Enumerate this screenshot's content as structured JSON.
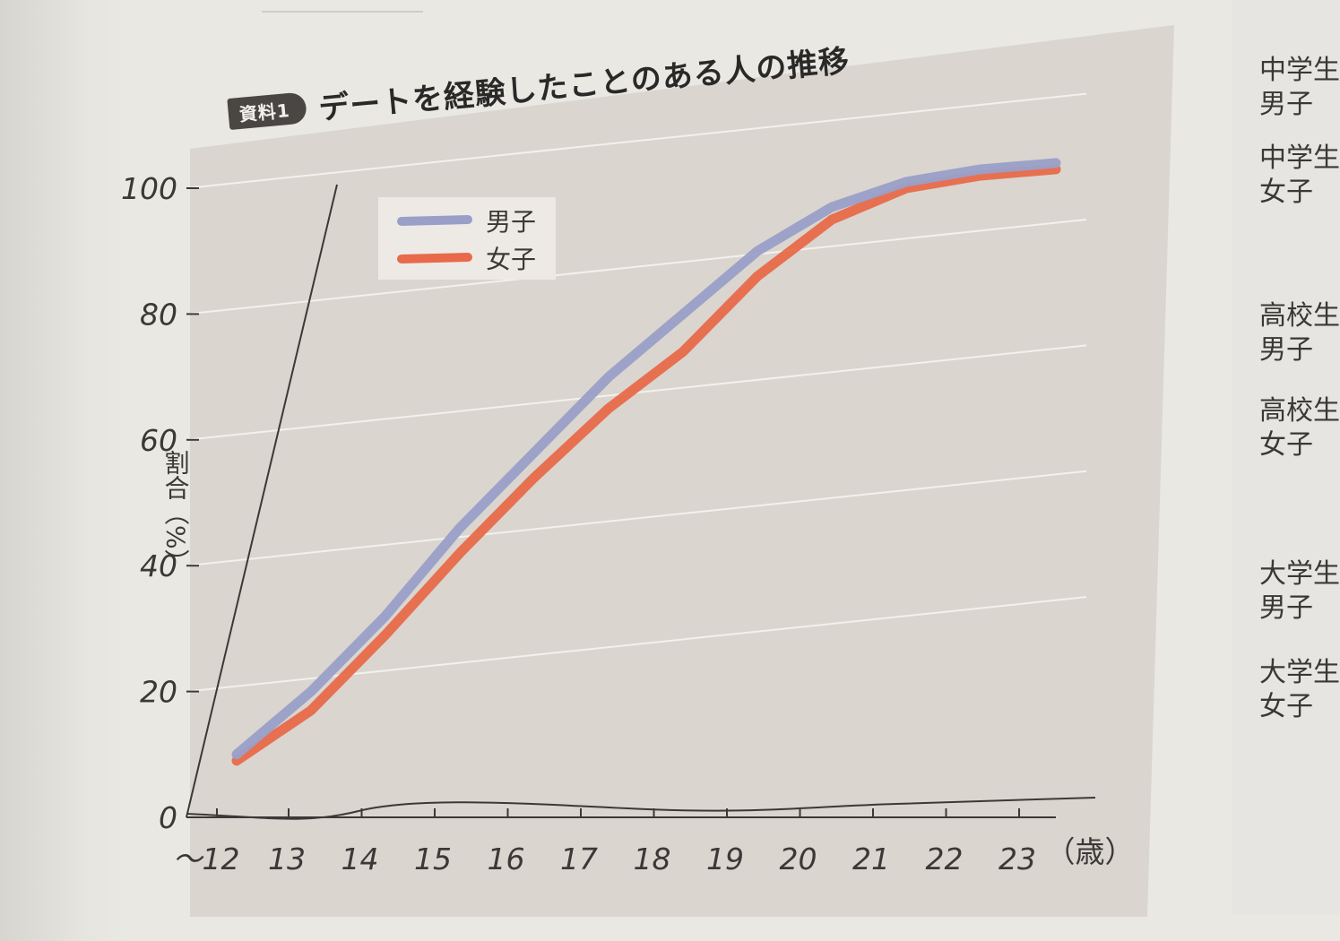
{
  "header": {
    "badge": "資料1",
    "title": "デートを経験したことのある人の推移"
  },
  "side_labels": [
    "中学生\n男子",
    "中学生\n女子",
    "高校生\n男子",
    "高校生\n女子",
    "大学生\n男子",
    "大学生\n女子"
  ],
  "chart_data": {
    "type": "line",
    "title": "デートを経験したことのある人の推移",
    "ylabel": "割合（%）",
    "xunit": "（歳）",
    "x": [
      "～12",
      "13",
      "14",
      "15",
      "16",
      "17",
      "18",
      "19",
      "20",
      "21",
      "22",
      "23"
    ],
    "yticks": [
      0,
      20,
      40,
      60,
      80,
      100
    ],
    "ylim": [
      0,
      100
    ],
    "legend": "top-left",
    "grid": true,
    "series": [
      {
        "name": "男子",
        "color": "#9a9fc8",
        "values": [
          10,
          20,
          32,
          46,
          58,
          70,
          80,
          90,
          97,
          101,
          103,
          104
        ]
      },
      {
        "name": "女子",
        "color": "#e86a4a",
        "values": [
          9,
          17,
          29,
          42,
          54,
          65,
          74,
          86,
          95,
          100,
          102,
          103
        ]
      }
    ]
  }
}
